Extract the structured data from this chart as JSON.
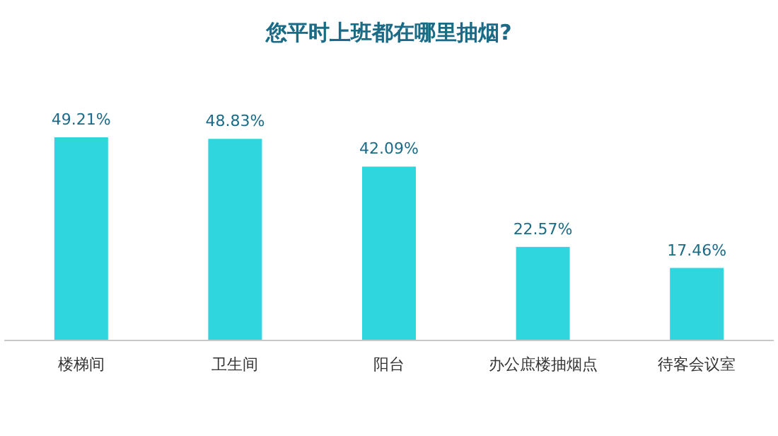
{
  "chart_data": {
    "type": "bar",
    "title": "您平时上班都在哪里抽烟?",
    "categories": [
      "楼梯间",
      "卫生间",
      "阳台",
      "办公庶楼抽烟点",
      "待客会议室"
    ],
    "values": [
      49.21,
      48.83,
      42.09,
      22.57,
      17.46
    ],
    "value_labels": [
      "49.21%",
      "48.83%",
      "42.09%",
      "22.57%",
      "17.46%"
    ],
    "color": "#2fd6de"
  }
}
